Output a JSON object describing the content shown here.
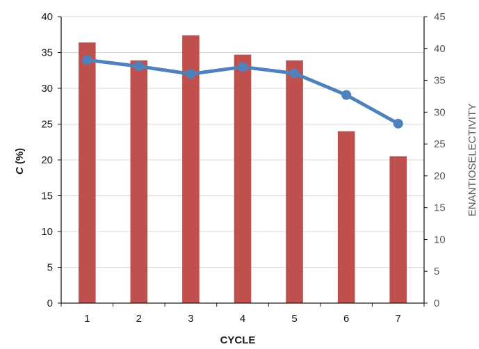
{
  "chart_data": {
    "type": "bar",
    "categories": [
      "1",
      "2",
      "3",
      "4",
      "5",
      "6",
      "7"
    ],
    "xlabel": "CYCLE",
    "ylabel": "C (%)",
    "ylabel_parts": {
      "italic": "C",
      "rest": " (%)"
    },
    "y2label": "ENANTIOSELECTIVITY",
    "ylim": [
      0,
      40
    ],
    "y2lim": [
      0,
      45
    ],
    "yticks": [
      0,
      5,
      10,
      15,
      20,
      25,
      30,
      35,
      40
    ],
    "y2ticks": [
      0,
      5,
      10,
      15,
      20,
      25,
      30,
      35,
      40,
      45
    ],
    "grid": true,
    "series": [
      {
        "type": "bar",
        "axis": "left",
        "color": "#c0504d",
        "values": [
          36.4,
          33.9,
          37.4,
          34.7,
          33.9,
          24.0,
          20.5
        ]
      },
      {
        "type": "line",
        "axis": "right",
        "color": "#4f81bd",
        "marker": "circle",
        "values": [
          38.2,
          37.2,
          36.0,
          37.1,
          36.1,
          32.7,
          28.2
        ]
      }
    ]
  }
}
